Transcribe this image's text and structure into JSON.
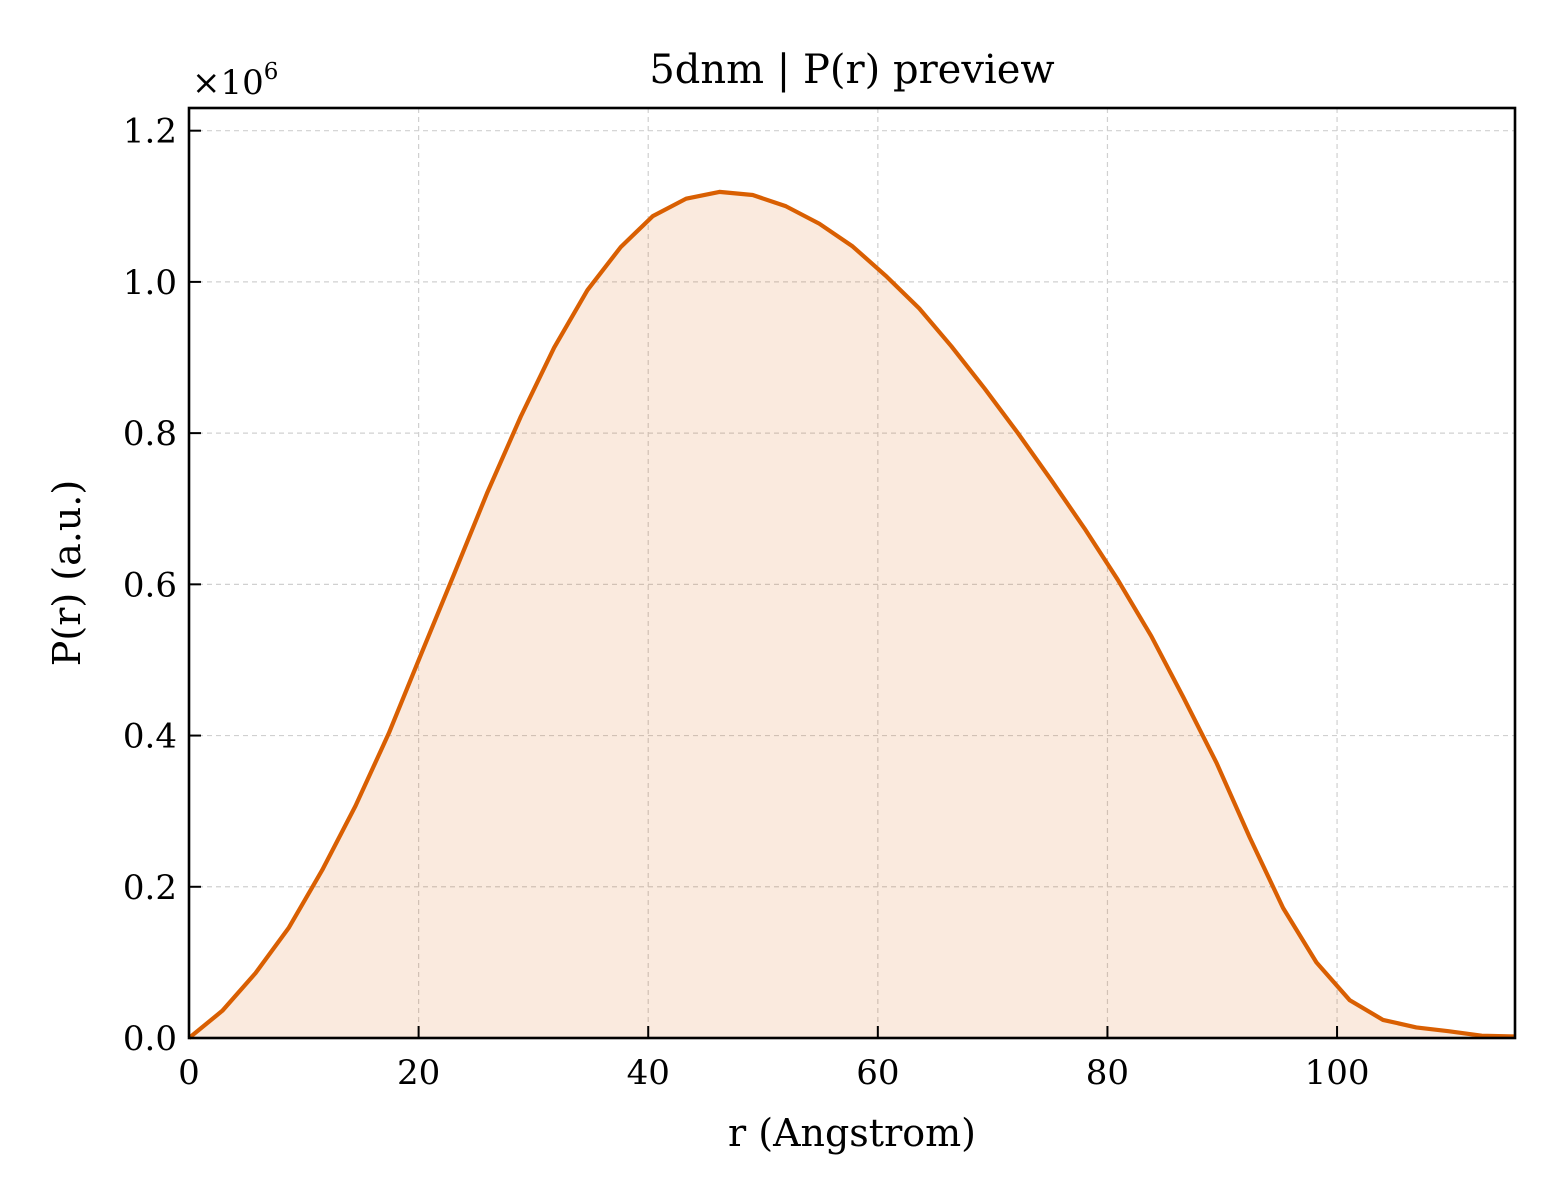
{
  "chart_data": {
    "type": "area",
    "title": "5dnm | P(r) preview",
    "xlabel": "r (Angstrom)",
    "ylabel": "P(r) (a.u.)",
    "y_offset_text": "×10",
    "y_offset_exponent": "6",
    "xlim": [
      0,
      115.5
    ],
    "ylim": [
      0,
      1.23
    ],
    "y_scale": 1000000,
    "xticks": [
      0,
      20,
      40,
      60,
      80,
      100
    ],
    "xtick_labels": [
      "0",
      "20",
      "40",
      "60",
      "80",
      "100"
    ],
    "yticks": [
      0.0,
      0.2,
      0.4,
      0.6,
      0.8,
      1.0,
      1.2
    ],
    "ytick_labels": [
      "0.0",
      "0.2",
      "0.4",
      "0.6",
      "0.8",
      "1.0",
      "1.2"
    ],
    "grid": true,
    "series": [
      {
        "color": "#d95f02",
        "fill_color": "#d95f02",
        "fill_opacity": 0.13,
        "x": [
          0,
          2.9,
          5.8,
          8.7,
          11.6,
          14.5,
          17.4,
          20.2,
          23.1,
          26.0,
          28.9,
          31.8,
          34.7,
          37.6,
          40.4,
          43.3,
          46.2,
          49.1,
          52.0,
          54.9,
          57.8,
          60.7,
          63.6,
          66.4,
          69.3,
          72.2,
          75.1,
          78.0,
          80.9,
          83.8,
          86.6,
          89.5,
          92.4,
          95.3,
          98.2,
          101.1,
          104.0,
          106.9,
          109.7,
          112.6,
          115.5
        ],
        "y": [
          0.0,
          0.036,
          0.086,
          0.146,
          0.222,
          0.307,
          0.403,
          0.507,
          0.614,
          0.722,
          0.822,
          0.913,
          0.989,
          1.046,
          1.087,
          1.11,
          1.119,
          1.115,
          1.1,
          1.077,
          1.047,
          1.008,
          0.965,
          0.915,
          0.859,
          0.8,
          0.738,
          0.674,
          0.606,
          0.532,
          0.451,
          0.364,
          0.265,
          0.172,
          0.1,
          0.05,
          0.024,
          0.014,
          0.009,
          0.003,
          0.002
        ]
      }
    ]
  }
}
